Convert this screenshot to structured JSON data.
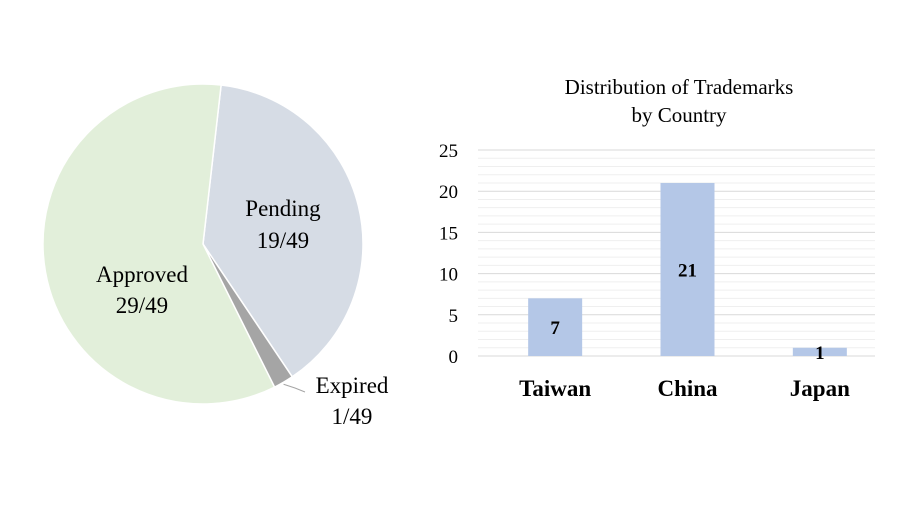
{
  "chart_data": [
    {
      "type": "pie",
      "slices": [
        {
          "label": "Pending",
          "value": 19,
          "text": "19/49",
          "color": "#d6dce5"
        },
        {
          "label": "Expired",
          "value": 1,
          "text": "1/49",
          "color": "#a5a5a5"
        },
        {
          "label": "Approved",
          "value": 29,
          "text": "29/49",
          "color": "#e2efda"
        }
      ],
      "total": 49
    },
    {
      "type": "bar",
      "title_lines": [
        "Distribution of Trademarks",
        "by Country"
      ],
      "categories": [
        "Taiwan",
        "China",
        "Japan"
      ],
      "values": [
        7,
        21,
        1
      ],
      "ylim": [
        0,
        25
      ],
      "yticks": [
        "0",
        "5",
        "10",
        "15",
        "20",
        "25"
      ],
      "grid": true,
      "bar_color": "#b4c7e7"
    }
  ]
}
